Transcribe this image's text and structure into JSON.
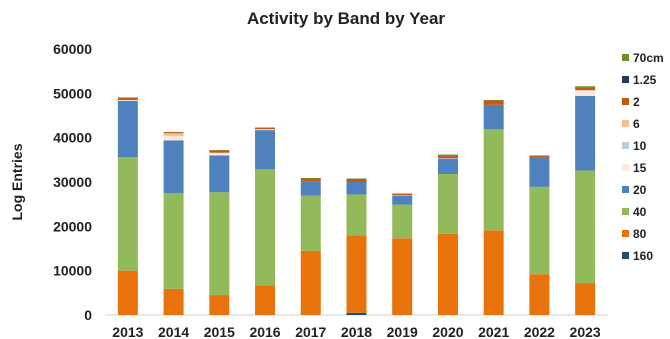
{
  "chart_data": {
    "type": "bar",
    "stacked": true,
    "title": "Activity by Band by Year",
    "xlabel": "",
    "ylabel": "Log Entries",
    "ylim": [
      0,
      60000
    ],
    "yticks": [
      "0",
      "10000",
      "20000",
      "30000",
      "40000",
      "50000",
      "60000"
    ],
    "grid": false,
    "legend_position": "right",
    "categories": [
      "2013",
      "2014",
      "2015",
      "2016",
      "2017",
      "2018",
      "2019",
      "2020",
      "2021",
      "2022",
      "2023"
    ],
    "series": [
      {
        "name": "160",
        "color": "#1f4e79",
        "values": [
          0,
          0,
          0,
          0,
          0,
          500,
          0,
          0,
          0,
          0,
          0
        ]
      },
      {
        "name": "80",
        "color": "#e8730c",
        "values": [
          10000,
          5900,
          4500,
          6700,
          14500,
          17500,
          17300,
          18300,
          19100,
          9200,
          7200
        ]
      },
      {
        "name": "40",
        "color": "#92b95a",
        "values": [
          25600,
          21600,
          23200,
          26200,
          12400,
          9200,
          7600,
          13500,
          22800,
          19700,
          25400
        ]
      },
      {
        "name": "20",
        "color": "#4f81bd",
        "values": [
          12700,
          11900,
          8300,
          8800,
          3300,
          2800,
          2000,
          3500,
          5500,
          6600,
          16800
        ]
      },
      {
        "name": "15",
        "color": "#fde7e1",
        "values": [
          200,
          1000,
          600,
          200,
          0,
          0,
          0,
          100,
          0,
          0,
          1300
        ]
      },
      {
        "name": "10",
        "color": "#b4cde6",
        "values": [
          0,
          0,
          0,
          0,
          0,
          0,
          0,
          0,
          0,
          0,
          0
        ]
      },
      {
        "name": "6",
        "color": "#f7be8f",
        "values": [
          0,
          600,
          0,
          0,
          0,
          0,
          100,
          0,
          0,
          0,
          0
        ]
      },
      {
        "name": "2",
        "color": "#c55a11",
        "values": [
          500,
          200,
          500,
          300,
          600,
          700,
          300,
          600,
          1000,
          400,
          600
        ]
      },
      {
        "name": "1.25",
        "color": "#203864",
        "values": [
          0,
          0,
          0,
          0,
          0,
          0,
          0,
          0,
          0,
          0,
          0
        ]
      },
      {
        "name": "70cm",
        "color": "#6d8e2e",
        "values": [
          100,
          100,
          100,
          100,
          100,
          100,
          100,
          200,
          100,
          100,
          300
        ]
      }
    ],
    "legend_order": [
      "70cm",
      "1.25",
      "2",
      "6",
      "10",
      "15",
      "20",
      "40",
      "80",
      "160"
    ]
  }
}
